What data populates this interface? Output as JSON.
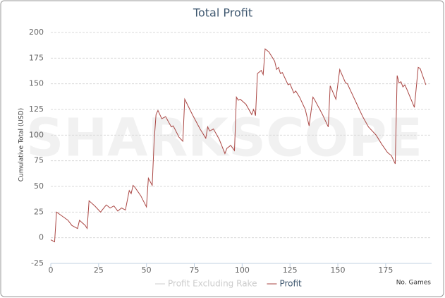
{
  "chart_data": {
    "type": "line",
    "title": "Total Profit",
    "watermark": "SHARKSCOPE",
    "y_label": "Cumulative Total (USD)",
    "x_label": "No. Games",
    "x": [
      0,
      2,
      3,
      6,
      9,
      11,
      13,
      14,
      15,
      18,
      19,
      20,
      23,
      26,
      29,
      31,
      33,
      35,
      37,
      39,
      41,
      42,
      43,
      44,
      47,
      50,
      51,
      53,
      54,
      55,
      56,
      58,
      60,
      63,
      64,
      67,
      68,
      69,
      70,
      74,
      78,
      81,
      82,
      83,
      85,
      88,
      91,
      92,
      94,
      96,
      97,
      98,
      99,
      102,
      105,
      106,
      107,
      108,
      110,
      111,
      112,
      114,
      117,
      118,
      119,
      120,
      121,
      124,
      125,
      127,
      128,
      130,
      133,
      135,
      137,
      138,
      142,
      145,
      146,
      149,
      151,
      154,
      155,
      157,
      160,
      163,
      166,
      170,
      173,
      176,
      178,
      180,
      181,
      182,
      183,
      184,
      185,
      186,
      190,
      192,
      193,
      196
    ],
    "series": [
      {
        "name": "Profit Excluding Rake",
        "color": "#cccccc",
        "visible": false
      },
      {
        "name": "Profit",
        "color": "#aa4643",
        "visible": true,
        "values": [
          -2,
          -4,
          25,
          21,
          17,
          12,
          10,
          9,
          17,
          12,
          9,
          36,
          31,
          25,
          32,
          29,
          31,
          26,
          29,
          27,
          46,
          43,
          51,
          49,
          41,
          30,
          58,
          51,
          94,
          120,
          124,
          116,
          118,
          108,
          109,
          98,
          96,
          94,
          135,
          120,
          106,
          97,
          108,
          104,
          106,
          96,
          82,
          87,
          90,
          85,
          137,
          134,
          135,
          130,
          120,
          125,
          119,
          160,
          163,
          159,
          184,
          181,
          172,
          164,
          166,
          160,
          161,
          149,
          150,
          141,
          143,
          137,
          125,
          109,
          137,
          134,
          120,
          108,
          148,
          135,
          164,
          151,
          150,
          142,
          130,
          118,
          108,
          100,
          91,
          83,
          80,
          72,
          158,
          151,
          152,
          147,
          149,
          145,
          127,
          166,
          165,
          149
        ]
      }
    ],
    "xlim": [
      0,
      199
    ],
    "xticks": [
      0,
      25,
      50,
      75,
      100,
      125,
      150,
      175
    ],
    "ylim": [
      -25,
      200
    ],
    "yticks": [
      -25,
      0,
      25,
      50,
      75,
      100,
      125,
      150,
      175,
      200
    ],
    "grid": true
  }
}
